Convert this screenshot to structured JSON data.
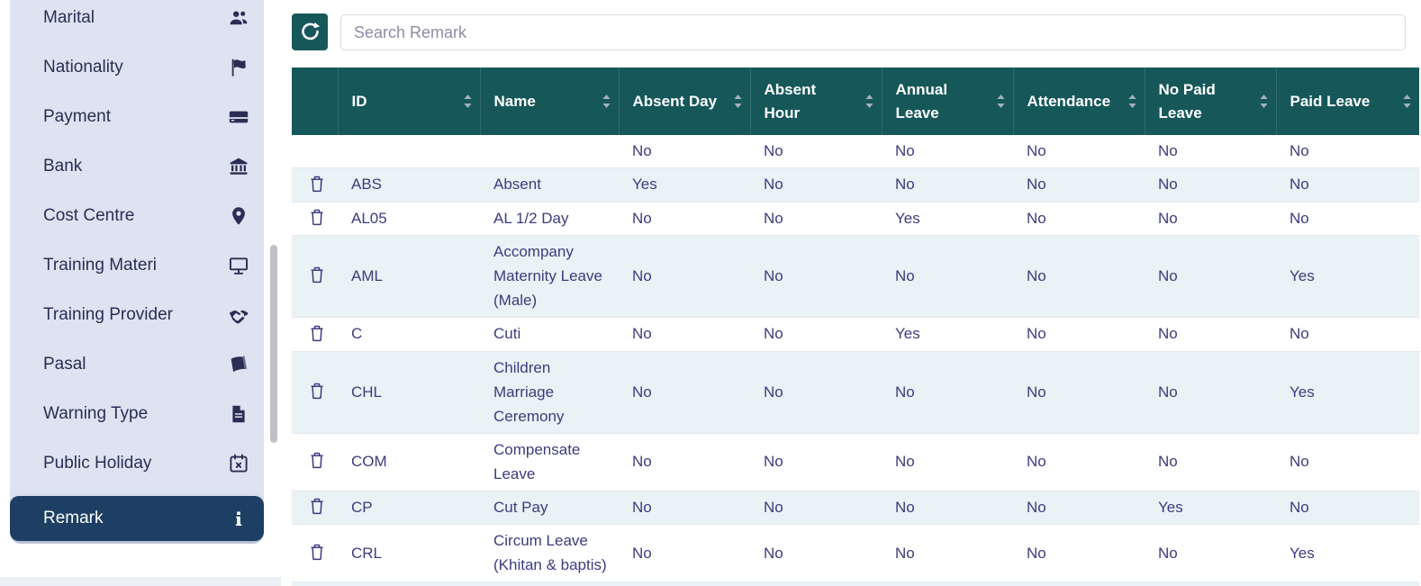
{
  "colors": {
    "accent_teal": "#16575a",
    "header_text": "#ffffff",
    "cell_text": "#3d3b7e",
    "row_stripe": "#e9f2f5",
    "sidebar_bg": "#dde3f1",
    "sidebar_text": "#2a2e55",
    "active_item_bg": "#1d3f63",
    "active_item_text": "#ffffff",
    "sort_icon": "#a3b1b8",
    "row_border": "#e3e8ef"
  },
  "sidebar": {
    "items": [
      {
        "label": "Marital",
        "icon": "people-icon",
        "active": false
      },
      {
        "label": "Nationality",
        "icon": "flag-icon",
        "active": false
      },
      {
        "label": "Payment",
        "icon": "credit-card-icon",
        "active": false
      },
      {
        "label": "Bank",
        "icon": "bank-icon",
        "active": false
      },
      {
        "label": "Cost Centre",
        "icon": "map-pin-icon",
        "active": false
      },
      {
        "label": "Training Materi",
        "icon": "monitor-icon",
        "active": false
      },
      {
        "label": "Training Provider",
        "icon": "handshake-icon",
        "active": false
      },
      {
        "label": "Pasal",
        "icon": "book-icon",
        "active": false
      },
      {
        "label": "Warning Type",
        "icon": "document-icon",
        "active": false
      },
      {
        "label": "Public Holiday",
        "icon": "calendar-x-icon",
        "active": false
      },
      {
        "label": "Remark",
        "icon": "info-icon",
        "active": true
      }
    ]
  },
  "toolbar": {
    "refresh_icon": "refresh-icon",
    "search": {
      "placeholder": "Search Remark",
      "value": ""
    }
  },
  "table": {
    "columns": [
      {
        "key": "delete",
        "label": "",
        "sortable": false
      },
      {
        "key": "id",
        "label": "ID",
        "sortable": true
      },
      {
        "key": "name",
        "label": "Name",
        "sortable": true
      },
      {
        "key": "absent_day",
        "label": "Absent Day",
        "sortable": true
      },
      {
        "key": "absent_hour",
        "label": "Absent Hour",
        "sortable": true
      },
      {
        "key": "annual_leave",
        "label": "Annual Leave",
        "sortable": true
      },
      {
        "key": "attendance",
        "label": "Attendance",
        "sortable": true
      },
      {
        "key": "no_paid_leave",
        "label": "No Paid Leave",
        "sortable": true
      },
      {
        "key": "paid_leave",
        "label": "Paid Leave",
        "sortable": true
      }
    ],
    "rows": [
      {
        "id": "",
        "name": "",
        "absent_day": "No",
        "absent_hour": "No",
        "annual_leave": "No",
        "attendance": "No",
        "no_paid_leave": "No",
        "paid_leave": "No",
        "show_delete": false
      },
      {
        "id": "ABS",
        "name": "Absent",
        "absent_day": "Yes",
        "absent_hour": "No",
        "annual_leave": "No",
        "attendance": "No",
        "no_paid_leave": "No",
        "paid_leave": "No",
        "show_delete": true
      },
      {
        "id": "AL05",
        "name": "AL 1/2 Day",
        "absent_day": "No",
        "absent_hour": "No",
        "annual_leave": "Yes",
        "attendance": "No",
        "no_paid_leave": "No",
        "paid_leave": "No",
        "show_delete": true
      },
      {
        "id": "AML",
        "name": "Accompany Maternity Leave (Male)",
        "absent_day": "No",
        "absent_hour": "No",
        "annual_leave": "No",
        "attendance": "No",
        "no_paid_leave": "No",
        "paid_leave": "Yes",
        "show_delete": true
      },
      {
        "id": "C",
        "name": "Cuti",
        "absent_day": "No",
        "absent_hour": "No",
        "annual_leave": "Yes",
        "attendance": "No",
        "no_paid_leave": "No",
        "paid_leave": "No",
        "show_delete": true
      },
      {
        "id": "CHL",
        "name": "Children Marriage Ceremony",
        "absent_day": "No",
        "absent_hour": "No",
        "annual_leave": "No",
        "attendance": "No",
        "no_paid_leave": "No",
        "paid_leave": "Yes",
        "show_delete": true
      },
      {
        "id": "COM",
        "name": "Compensate Leave",
        "absent_day": "No",
        "absent_hour": "No",
        "annual_leave": "No",
        "attendance": "No",
        "no_paid_leave": "No",
        "paid_leave": "No",
        "show_delete": true
      },
      {
        "id": "CP",
        "name": "Cut Pay",
        "absent_day": "No",
        "absent_hour": "No",
        "annual_leave": "No",
        "attendance": "No",
        "no_paid_leave": "Yes",
        "paid_leave": "No",
        "show_delete": true
      },
      {
        "id": "CRL",
        "name": "Circum Leave (Khitan & baptis)",
        "absent_day": "No",
        "absent_hour": "No",
        "annual_leave": "No",
        "attendance": "No",
        "no_paid_leave": "No",
        "paid_leave": "Yes",
        "show_delete": true
      }
    ]
  }
}
